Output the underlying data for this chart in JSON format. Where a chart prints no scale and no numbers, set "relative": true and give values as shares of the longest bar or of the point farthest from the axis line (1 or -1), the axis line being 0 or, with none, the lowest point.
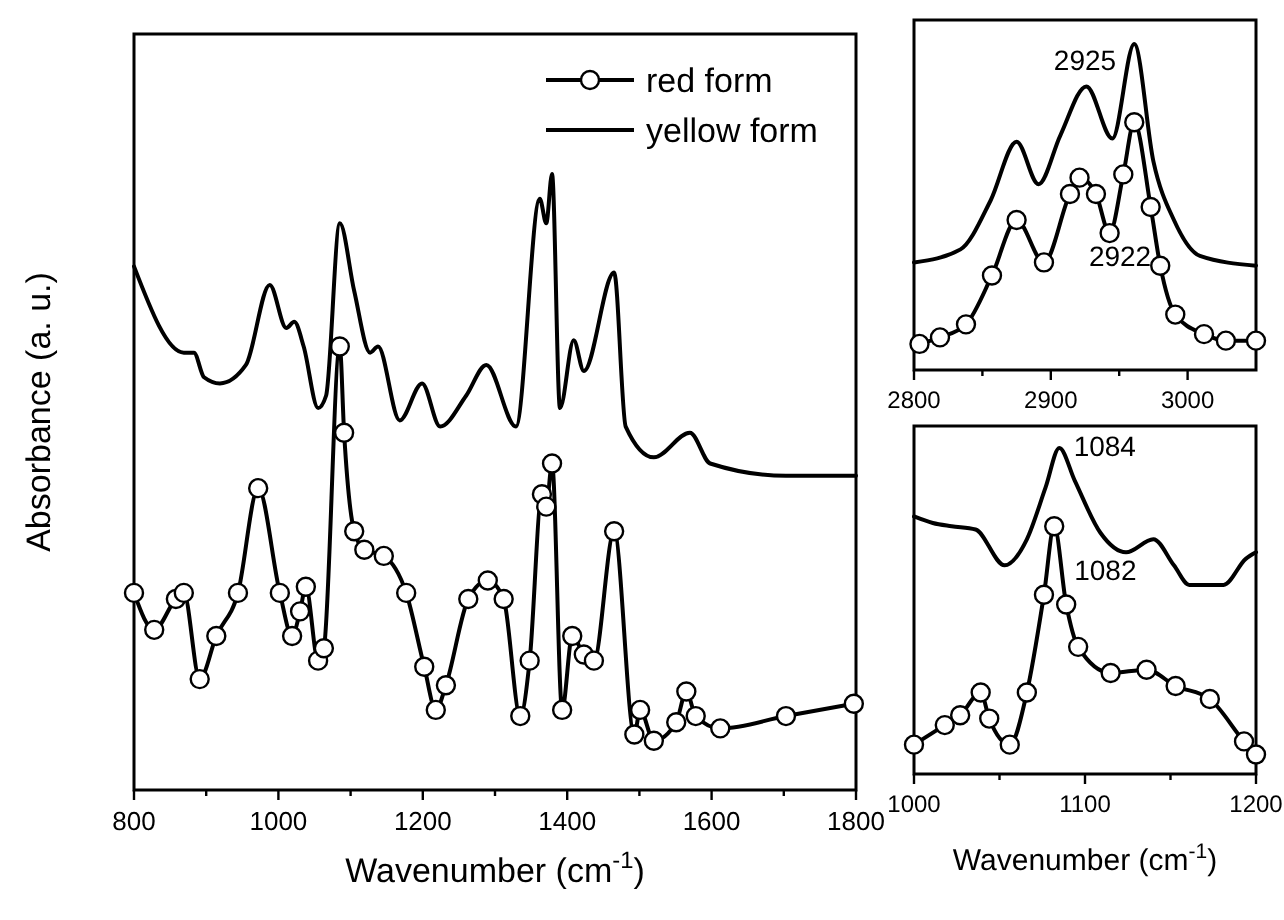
{
  "chart_data": [
    {
      "type": "line",
      "relative": true,
      "xlabel": "Wavenumber (cm$^{-1}$)",
      "ylabel": "Absorbance (a. u.)",
      "xlim": [
        800,
        1800
      ],
      "xticks": [
        800,
        {
          "value": 900,
          "label": null
        },
        1000,
        {
          "value": 1100,
          "label": null
        },
        1200,
        {
          "value": 1300,
          "label": null
        },
        1400,
        {
          "value": 1500,
          "label": null
        },
        1600,
        {
          "value": 1700,
          "label": null
        },
        1800
      ],
      "legend": "top right",
      "series": [
        {
          "name": "red form",
          "color": "#000000",
          "marker": "circle",
          "x": [
            800,
            828,
            858,
            869,
            891,
            914,
            944,
            972,
            1002,
            1019,
            1030,
            1038,
            1055,
            1063,
            1085,
            1091,
            1105,
            1119,
            1146,
            1177,
            1202,
            1218,
            1232,
            1263,
            1290,
            1312,
            1335,
            1348,
            1365,
            1371,
            1379,
            1393,
            1407,
            1423,
            1437,
            1465,
            1493,
            1501,
            1520,
            1551,
            1565,
            1578,
            1612,
            1703,
            1797
          ],
          "values": [
            0.32,
            0.26,
            0.31,
            0.32,
            0.18,
            0.25,
            0.32,
            0.49,
            0.32,
            0.25,
            0.29,
            0.33,
            0.21,
            0.23,
            0.72,
            0.58,
            0.42,
            0.39,
            0.38,
            0.32,
            0.2,
            0.13,
            0.17,
            0.31,
            0.34,
            0.31,
            0.12,
            0.21,
            0.48,
            0.46,
            0.53,
            0.13,
            0.25,
            0.22,
            0.21,
            0.42,
            0.09,
            0.13,
            0.08,
            0.11,
            0.16,
            0.12,
            0.1,
            0.12,
            0.14
          ]
        },
        {
          "name": "yellow form",
          "color": "#000000",
          "x": [
            800,
            869,
            883,
            897,
            919,
            955,
            988,
            1011,
            1022,
            1035,
            1055,
            1066,
            1085,
            1105,
            1127,
            1138,
            1168,
            1199,
            1224,
            1260,
            1288,
            1329,
            1362,
            1371,
            1379,
            1390,
            1409,
            1423,
            1465,
            1481,
            1520,
            1570,
            1598,
            1703,
            1800
          ],
          "values": [
            0.85,
            0.71,
            0.71,
            0.67,
            0.66,
            0.69,
            0.82,
            0.75,
            0.76,
            0.72,
            0.62,
            0.64,
            0.92,
            0.81,
            0.71,
            0.72,
            0.6,
            0.66,
            0.59,
            0.64,
            0.69,
            0.59,
            0.96,
            0.92,
            1,
            0.62,
            0.73,
            0.68,
            0.84,
            0.59,
            0.54,
            0.58,
            0.53,
            0.51,
            0.51
          ]
        }
      ]
    },
    {
      "type": "line",
      "relative": true,
      "xlim": [
        2800,
        3050
      ],
      "xticks": [
        2800,
        {
          "value": 2850,
          "label": null
        },
        2900,
        {
          "value": 2950,
          "label": null
        },
        3000
      ],
      "annotations": [
        {
          "text": "2925",
          "x": 2925,
          "y": 0.87
        },
        {
          "text": "2922",
          "x": 2922,
          "y": 0.59
        }
      ],
      "series": [
        {
          "color": "#000000",
          "marker": "circle",
          "x": [
            2804,
            2819,
            2838,
            2857,
            2875,
            2895,
            2914,
            2921,
            2933,
            2943,
            2953,
            2961,
            2973,
            2980,
            2991,
            3012,
            3028,
            3050
          ],
          "values": [
            0.08,
            0.1,
            0.14,
            0.29,
            0.46,
            0.33,
            0.54,
            0.59,
            0.54,
            0.42,
            0.6,
            0.76,
            0.5,
            0.32,
            0.17,
            0.11,
            0.09,
            0.09
          ]
        },
        {
          "color": "#000000",
          "x": [
            2800,
            2834,
            2856,
            2875,
            2891,
            2907,
            2926,
            2945,
            2961,
            2975,
            2990,
            3009,
            3050
          ],
          "values": [
            0.33,
            0.37,
            0.52,
            0.7,
            0.57,
            0.72,
            0.87,
            0.71,
            1,
            0.64,
            0.46,
            0.35,
            0.32
          ]
        }
      ]
    },
    {
      "type": "line",
      "relative": true,
      "xlabel": "Wavenumber (cm$^{-1}$)",
      "xlim": [
        1000,
        1200
      ],
      "xticks": [
        1000,
        {
          "value": 1050,
          "label": null
        },
        1100,
        {
          "value": 1150,
          "label": null
        },
        1200
      ],
      "annotations": [
        {
          "text": "1084",
          "x": 1084,
          "y": 1
        },
        {
          "text": "1082",
          "x": 1082,
          "y": 0.76
        }
      ],
      "series": [
        {
          "color": "#000000",
          "marker": "circle",
          "x": [
            1000,
            1018,
            1027,
            1039,
            1044,
            1056,
            1066,
            1076,
            1082,
            1089,
            1096,
            1115,
            1136,
            1153,
            1173,
            1193,
            1200
          ],
          "values": [
            0.09,
            0.15,
            0.18,
            0.25,
            0.17,
            0.09,
            0.25,
            0.55,
            0.76,
            0.52,
            0.39,
            0.31,
            0.32,
            0.27,
            0.23,
            0.1,
            0.06
          ]
        },
        {
          "color": "#000000",
          "x": [
            1000,
            1011,
            1022,
            1036,
            1053,
            1066,
            1077,
            1085,
            1094,
            1109,
            1124,
            1140,
            1152,
            1161,
            1181,
            1194,
            1200
          ],
          "values": [
            0.79,
            0.77,
            0.76,
            0.75,
            0.64,
            0.72,
            0.88,
            1,
            0.9,
            0.74,
            0.68,
            0.72,
            0.64,
            0.58,
            0.58,
            0.66,
            0.68
          ]
        }
      ]
    }
  ]
}
